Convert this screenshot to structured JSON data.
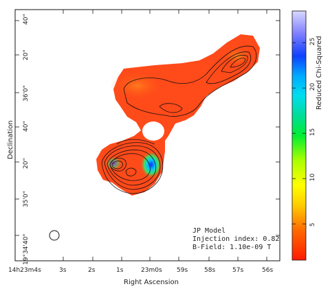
{
  "chart_data": {
    "type": "heatmap",
    "title": "",
    "xlabel": "Right Ascension",
    "ylabel": "Declination",
    "x_ticks": [
      "14h23m4s",
      "3s",
      "2s",
      "1s",
      "23m0s",
      "59s",
      "58s",
      "57s",
      "56s"
    ],
    "y_ticks": [
      "40\"",
      "20\"",
      "36'0\"",
      "40\"",
      "20\"",
      "35'0\"",
      "19°34'40\""
    ],
    "colorbar": {
      "label": "Reduced Chi-Squared",
      "ticks": [
        5,
        10,
        15,
        20,
        25
      ],
      "range": [
        1,
        28.5
      ],
      "colormap": "rainbow (red → yellow → green → cyan → blue → violet)"
    },
    "annotations": [
      "JP Model",
      "Injection index: 0.82",
      "B-Field: 1.10e-09 T"
    ],
    "features": {
      "beam": "circle",
      "contours": "black",
      "max_region": "blue-cyan near 23m0s, 36'20\""
    }
  },
  "colors": {
    "low": "#ff2a00",
    "high": "#c0c0ff"
  }
}
